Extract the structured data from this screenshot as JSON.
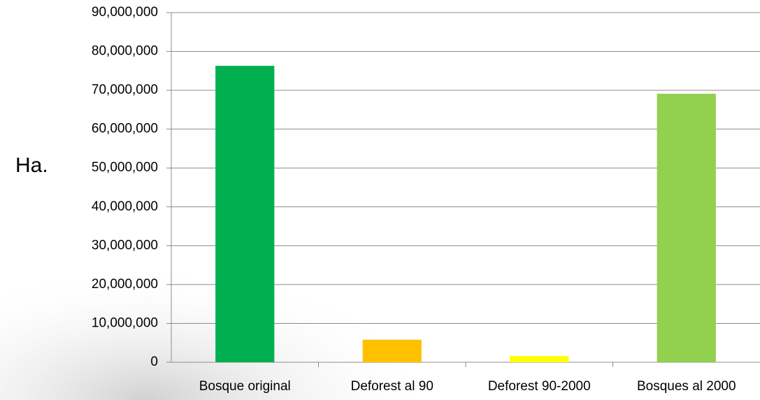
{
  "chart_data": {
    "type": "bar",
    "y_label": "Ha.",
    "categories": [
      "Bosque original",
      "Deforest al 90",
      "Deforest 90-2000",
      "Bosques al 2000"
    ],
    "values": [
      76300000,
      5800000,
      1600000,
      69100000
    ],
    "colors": [
      "#00b050",
      "#ffc000",
      "#ffff00",
      "#92d050"
    ],
    "ylim": [
      0,
      90000000
    ],
    "yticks": [
      0,
      {
        "value": 10000000,
        "label": "10,000,000"
      },
      {
        "value": 20000000,
        "label": "20,000,000"
      },
      {
        "value": 30000000,
        "label": "30,000,000"
      },
      {
        "value": 40000000,
        "label": "40,000,000"
      },
      {
        "value": 50000000,
        "label": "50,000,000"
      },
      {
        "value": 60000000,
        "label": "60,000,000"
      },
      {
        "value": 70000000,
        "label": "70,000,000"
      },
      {
        "value": 80000000,
        "label": "80,000,000"
      },
      {
        "value": 90000000,
        "label": "90,000,000"
      }
    ],
    "grid": true
  }
}
